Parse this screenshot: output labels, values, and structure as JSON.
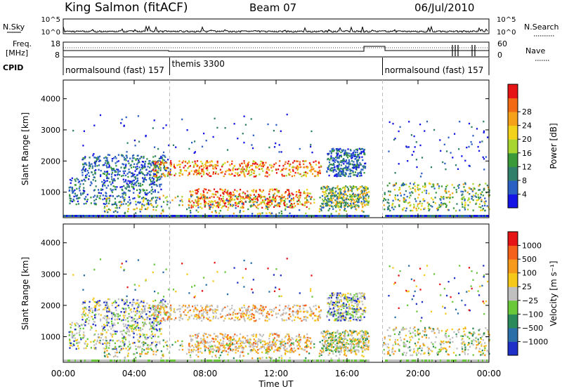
{
  "header": {
    "station": "King Salmon (fitACF)",
    "beam": "Beam 07",
    "date": "06/Jul/2010"
  },
  "top_panels": {
    "nsky_label": "N.Sky",
    "nsearch_label": "N.Search",
    "nsky_ticks": [
      "10^5",
      "10^0"
    ],
    "nsearch_ticks": [
      "10^5",
      "10^0"
    ],
    "freq_label_1": "Freq.",
    "freq_label_2": "[MHz]",
    "freq_ticks": [
      "18",
      "8"
    ],
    "nave_label": "Nave",
    "nave_ticks": [
      "60",
      "0"
    ],
    "cpid_label": "CPID",
    "cpid_segments": [
      {
        "label": "normalsound (fast) 157",
        "start_h": 0,
        "end_h": 6
      },
      {
        "label": "themis 3300",
        "start_h": 6,
        "end_h": 18
      },
      {
        "label": "normalsound (fast) 157",
        "start_h": 18,
        "end_h": 24
      }
    ]
  },
  "chart_data": [
    {
      "type": "heatmap",
      "title": "Power",
      "xlabel": "",
      "ylabel": "Slant Range [km]",
      "xlim": [
        0,
        24
      ],
      "ylim": [
        180,
        4600
      ],
      "yticks": [
        1000,
        2000,
        3000,
        4000
      ],
      "xticks": [
        "00:00",
        "04:00",
        "08:00",
        "12:00",
        "16:00",
        "20:00",
        "00:00"
      ],
      "colorbar": {
        "label": "Power [dB]",
        "ticks": [
          "4",
          "8",
          "12",
          "16",
          "20",
          "24",
          "28"
        ],
        "colors": [
          "#1414e6",
          "#2a5fc4",
          "#2f7f6a",
          "#3a9a3a",
          "#a8d630",
          "#f2d21a",
          "#f5a21a",
          "#f26a14",
          "#e61414"
        ]
      },
      "scatter_regions": [
        {
          "t0": 0.3,
          "t1": 5.5,
          "r0": 600,
          "r1": 1500,
          "level": "low"
        },
        {
          "t0": 1.0,
          "t1": 6.0,
          "r0": 1500,
          "r1": 2200,
          "level": "low"
        },
        {
          "t0": 5.0,
          "t1": 14.5,
          "r0": 1500,
          "r1": 2000,
          "level": "high"
        },
        {
          "t0": 7.0,
          "t1": 14.0,
          "r0": 500,
          "r1": 1100,
          "level": "high"
        },
        {
          "t0": 2.0,
          "t1": 17.0,
          "r0": 300,
          "r1": 900,
          "level": "mid"
        },
        {
          "t0": 14.5,
          "t1": 17.2,
          "r0": 500,
          "r1": 1200,
          "level": "mid"
        },
        {
          "t0": 14.8,
          "t1": 17.0,
          "r0": 1500,
          "r1": 2400,
          "level": "low"
        },
        {
          "t0": 18.0,
          "t1": 24.0,
          "r0": 400,
          "r1": 1300,
          "level": "mid"
        },
        {
          "t0": 18.3,
          "t1": 24.0,
          "r0": 1500,
          "r1": 3300,
          "level": "sparse"
        },
        {
          "t0": 0.5,
          "t1": 14.0,
          "r0": 2200,
          "r1": 3500,
          "level": "sparse"
        }
      ]
    },
    {
      "type": "heatmap",
      "title": "Velocity",
      "xlabel": "Time UT",
      "ylabel": "Slant Range [km]",
      "xlim": [
        0,
        24
      ],
      "ylim": [
        180,
        4600
      ],
      "yticks": [
        1000,
        2000,
        3000,
        4000
      ],
      "xticks": [
        "00:00",
        "04:00",
        "08:00",
        "12:00",
        "16:00",
        "20:00",
        "00:00"
      ],
      "colorbar": {
        "label": "Velocity [m s⁻¹]",
        "ticks": [
          "1000",
          "500",
          "100",
          "25",
          "−25",
          "−100",
          "−500",
          "−1000"
        ],
        "colors": [
          "#1e30c8",
          "#2a6fa8",
          "#2a8a5a",
          "#68c83a",
          "#c0c0c0",
          "#f5c81a",
          "#f59a1a",
          "#f5601a",
          "#e61414"
        ]
      }
    }
  ]
}
